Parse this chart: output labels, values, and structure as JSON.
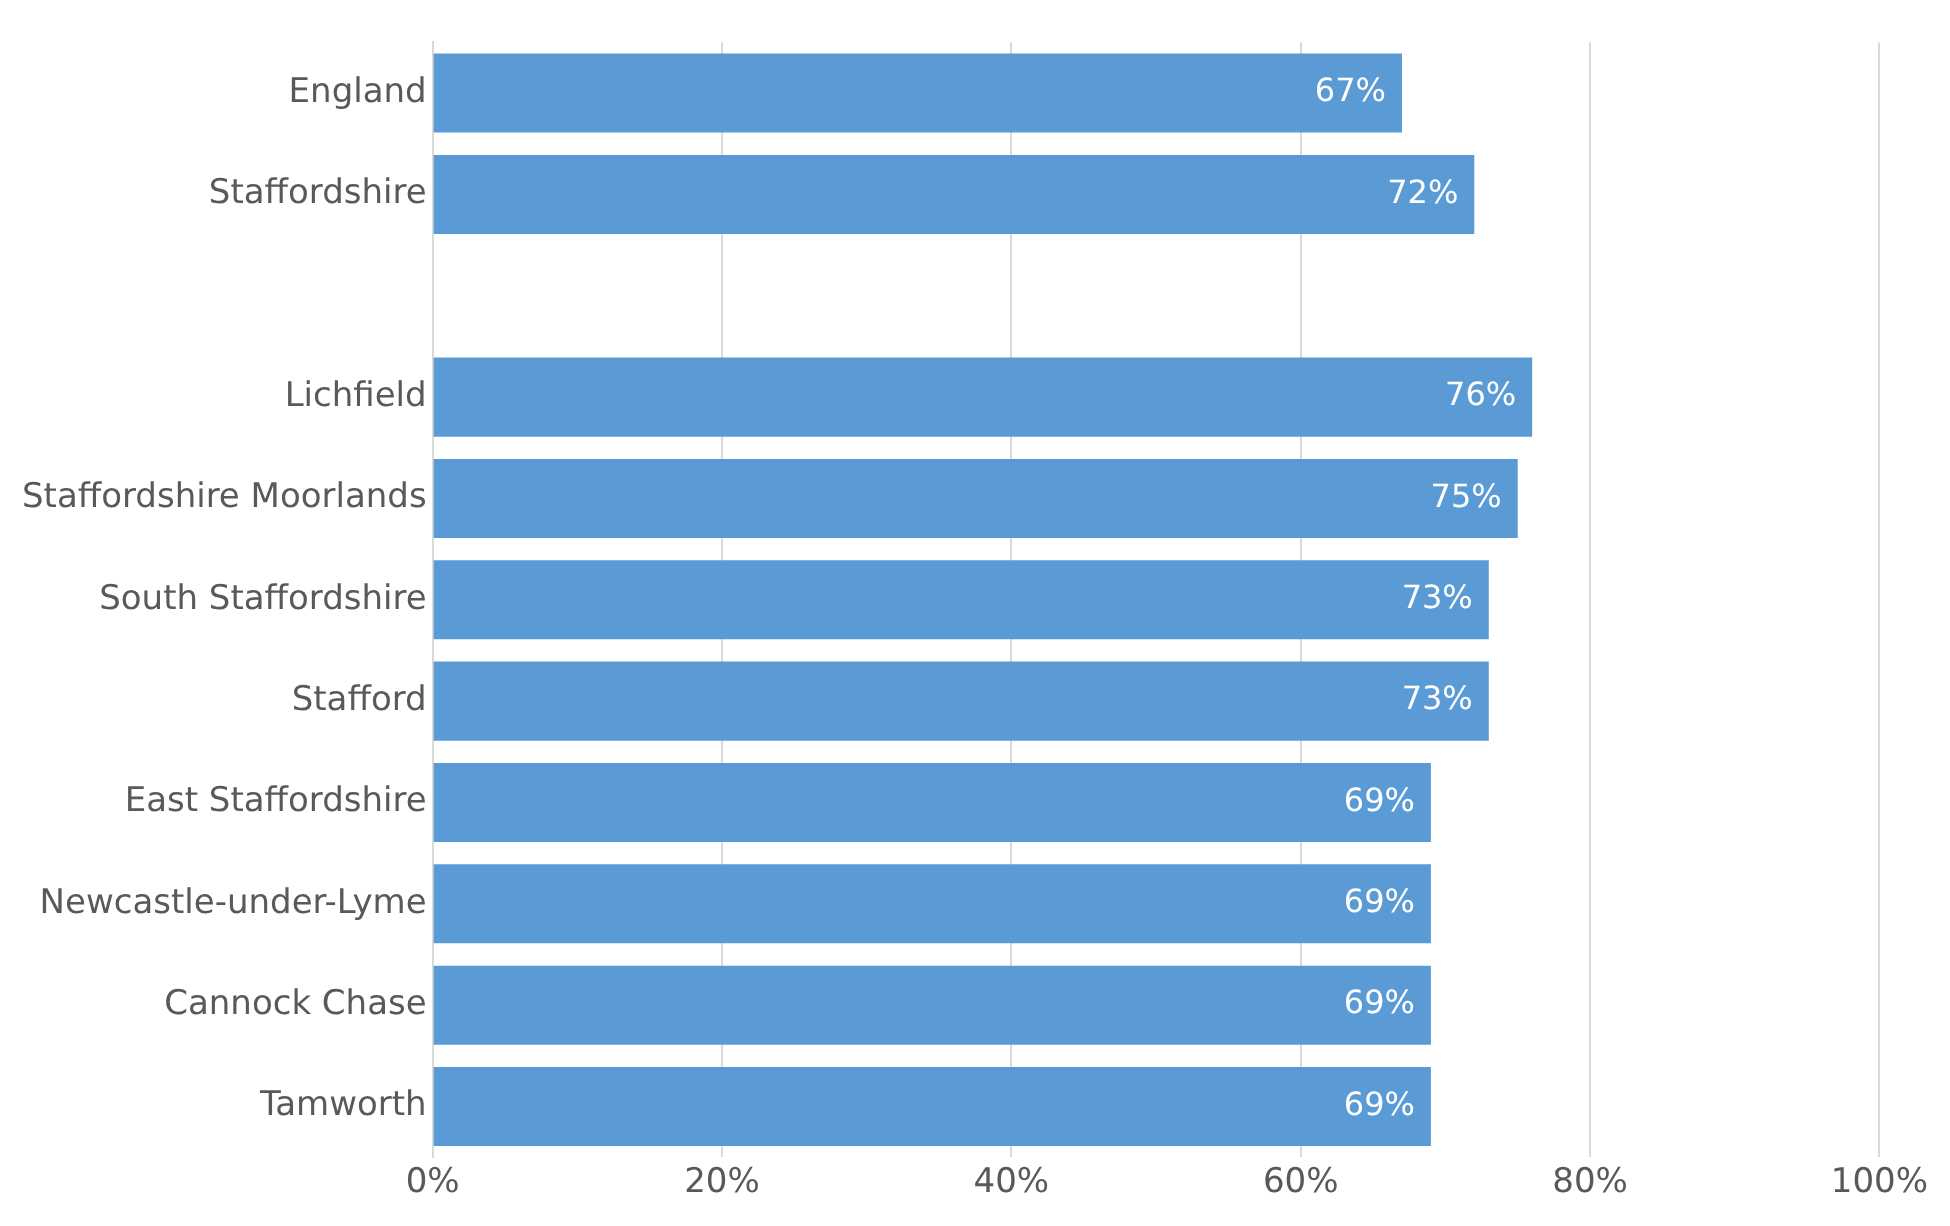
{
  "chart_data": {
    "type": "bar",
    "orientation": "horizontal",
    "categories": [
      "England",
      "Staffordshire",
      null,
      "Lichfield",
      "Staffordshire Moorlands",
      "South Staffordshire",
      "Stafford",
      "East Staffordshire",
      "Newcastle-under-Lyme",
      "Cannock Chase",
      "Tamworth"
    ],
    "values": [
      67,
      72,
      null,
      76,
      75,
      73,
      73,
      69,
      69,
      69,
      69
    ],
    "value_labels": [
      "67%",
      "72%",
      null,
      "76%",
      "75%",
      "73%",
      "73%",
      "69%",
      "69%",
      "69%",
      "69%"
    ],
    "color": "#5b9bd5",
    "xlim": [
      0,
      100
    ],
    "xticks": [
      {
        "value": 0,
        "label": "0%"
      },
      {
        "value": 20,
        "label": "20%"
      },
      {
        "value": 40,
        "label": "40%"
      },
      {
        "value": 60,
        "label": "60%"
      },
      {
        "value": 80,
        "label": "80%"
      },
      {
        "value": 100,
        "label": "100%"
      }
    ],
    "grid": "x",
    "legend": false
  }
}
